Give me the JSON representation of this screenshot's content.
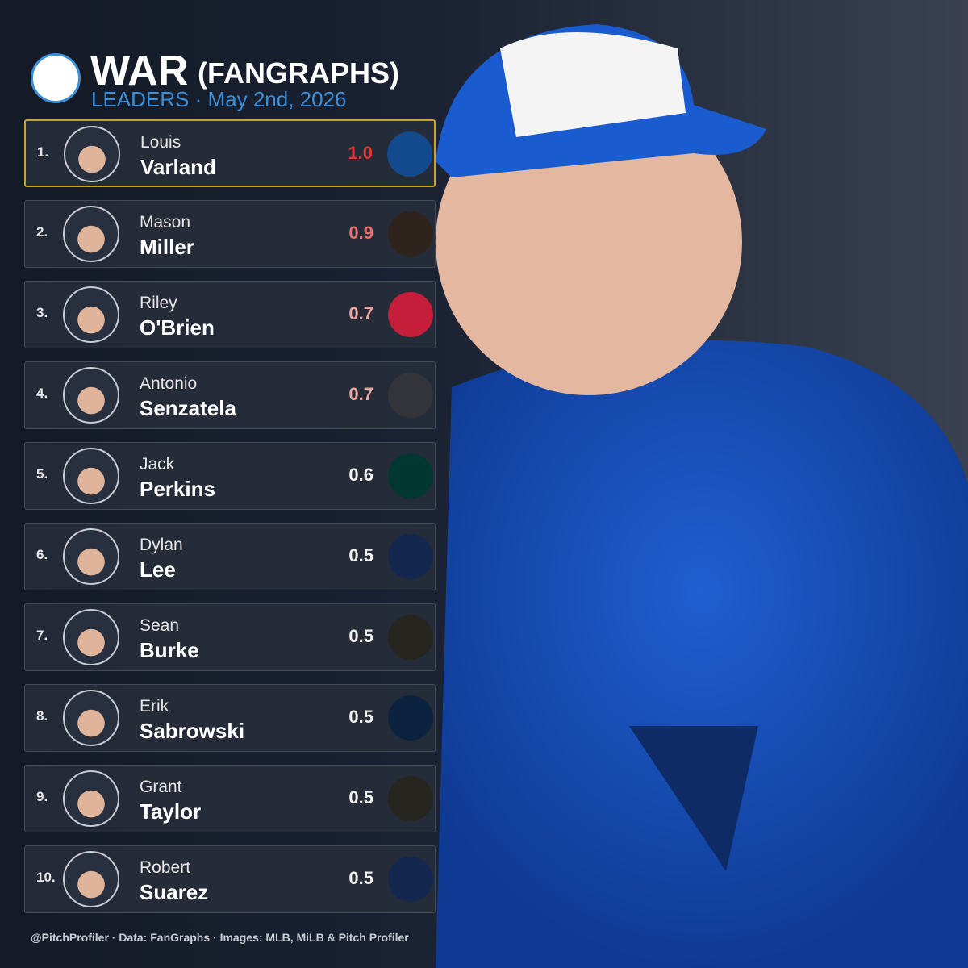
{
  "header": {
    "title": "WAR",
    "title_suffix": "(FANGRAPHS)",
    "subtitle": "LEADERS  ·  May 2nd, 2026"
  },
  "rows": [
    {
      "rank": "1.",
      "first": "Louis",
      "last": "Varland",
      "war": "1.0",
      "war_color": "#e0343a",
      "team_color": "#134a8e"
    },
    {
      "rank": "2.",
      "first": "Mason",
      "last": "Miller",
      "war": "0.9",
      "war_color": "#e8706e",
      "team_color": "#2f241d"
    },
    {
      "rank": "3.",
      "first": "Riley",
      "last": "O'Brien",
      "war": "0.7",
      "war_color": "#eea6a0",
      "team_color": "#c41e3a"
    },
    {
      "rank": "4.",
      "first": "Antonio",
      "last": "Senzatela",
      "war": "0.7",
      "war_color": "#eea6a0",
      "team_color": "#33333a"
    },
    {
      "rank": "5.",
      "first": "Jack",
      "last": "Perkins",
      "war": "0.6",
      "war_color": "#f2f2f2",
      "team_color": "#003831"
    },
    {
      "rank": "6.",
      "first": "Dylan",
      "last": "Lee",
      "war": "0.5",
      "war_color": "#f2f2f2",
      "team_color": "#13274f"
    },
    {
      "rank": "7.",
      "first": "Sean",
      "last": "Burke",
      "war": "0.5",
      "war_color": "#f2f2f2",
      "team_color": "#27251f"
    },
    {
      "rank": "8.",
      "first": "Erik",
      "last": "Sabrowski",
      "war": "0.5",
      "war_color": "#f2f2f2",
      "team_color": "#0c2340"
    },
    {
      "rank": "9.",
      "first": "Grant",
      "last": "Taylor",
      "war": "0.5",
      "war_color": "#f2f2f2",
      "team_color": "#27251f"
    },
    {
      "rank": "10.",
      "first": "Robert",
      "last": "Suarez",
      "war": "0.5",
      "war_color": "#f2f2f2",
      "team_color": "#13274f"
    }
  ],
  "footer": "@PitchProfiler  ·  Data: FanGraphs  ·  Images: MLB, MiLB & Pitch Profiler"
}
